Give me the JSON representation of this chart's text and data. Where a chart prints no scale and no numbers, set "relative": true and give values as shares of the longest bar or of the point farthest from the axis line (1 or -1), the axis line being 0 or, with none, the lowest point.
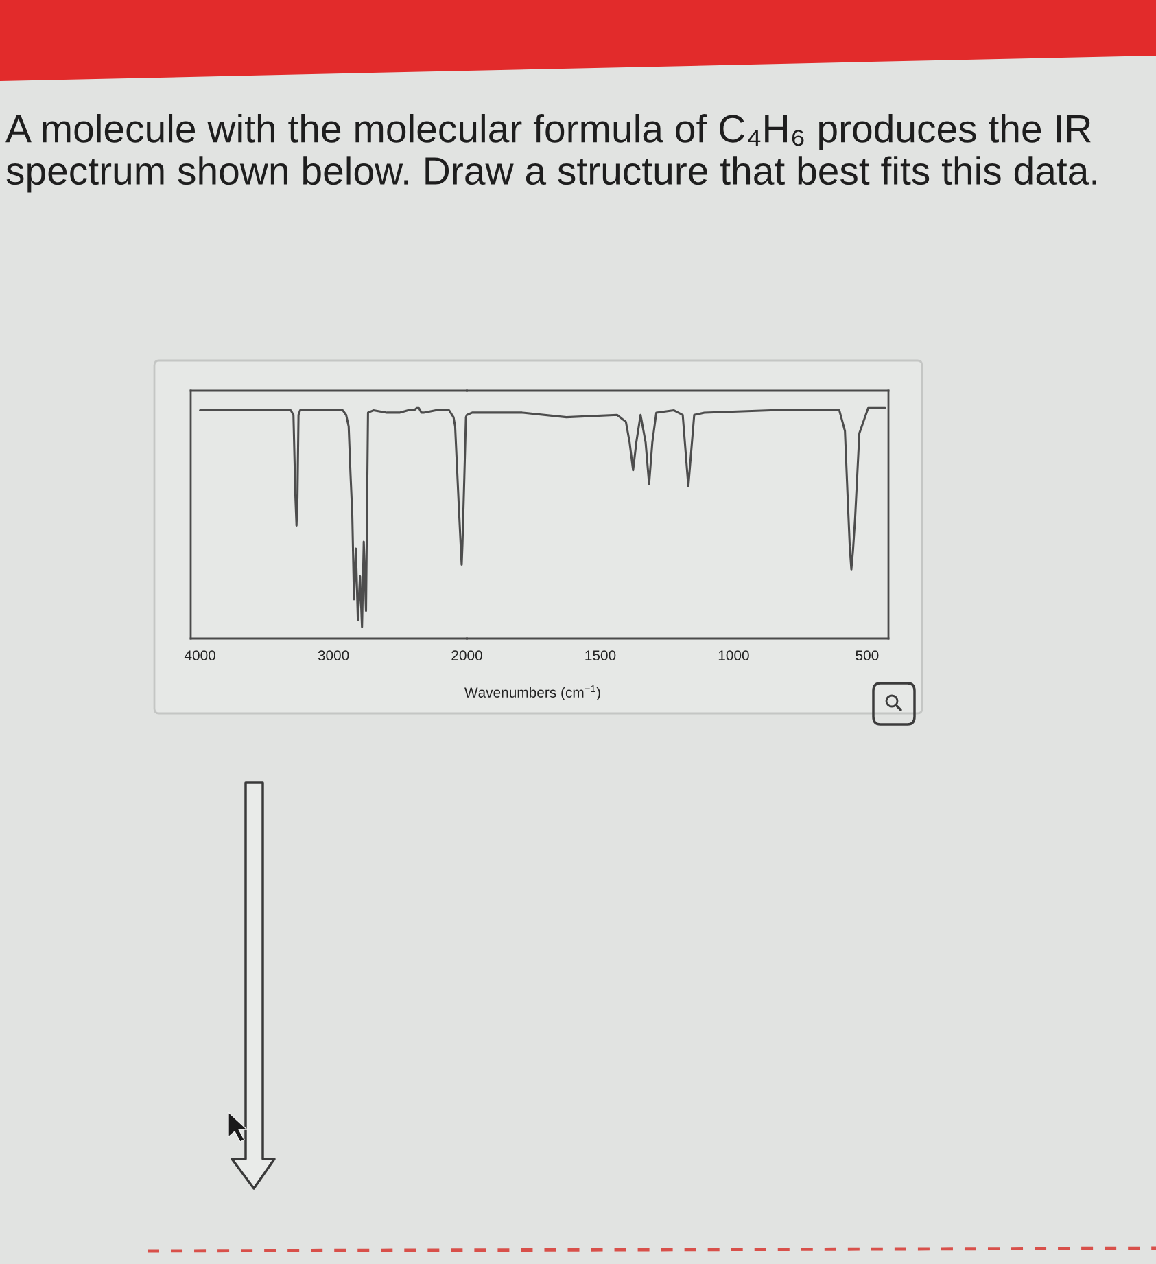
{
  "chart_data": [
    {
      "type": "line",
      "title": "A molecule with the molecular formula of C₄H₆ produces the IR spectrum shown below. Draw a structure that best fits this data.",
      "relative": true,
      "xlim": [
        4070,
        2000
      ],
      "xticks": [
        4000,
        3000,
        2000
      ],
      "x": [
        4000,
        3700,
        3320,
        3300,
        3285,
        3277,
        3270,
        3262,
        3250,
        2930,
        2905,
        2886,
        2872,
        2859,
        2846,
        2832,
        2817,
        2801,
        2786,
        2773,
        2756,
        2741,
        2700,
        2600,
        2505,
        2440,
        2396,
        2375,
        2360,
        2340,
        2324,
        2233,
        2133,
        2100,
        2088,
        2061,
        2045,
        2039,
        2033,
        2019,
        2007,
        2000
      ],
      "series": [
        {
          "color": "#4d4d4d",
          "values": [
            0.99,
            0.99,
            0.99,
            0.97,
            0.61,
            0.49,
            0.61,
            0.97,
            0.99,
            0.99,
            0.97,
            0.92,
            0.71,
            0.54,
            0.17,
            0.39,
            0.08,
            0.27,
            0.05,
            0.42,
            0.12,
            0.98,
            0.99,
            0.98,
            0.98,
            0.99,
            0.99,
            1.0,
            1.0,
            0.98,
            0.98,
            0.99,
            0.99,
            0.96,
            0.92,
            0.58,
            0.39,
            0.32,
            0.41,
            0.7,
            0.96,
            0.97
          ]
        }
      ]
    },
    {
      "type": "line",
      "xlabel": "Wavenumbers (cm$^{−1}$)",
      "relative": true,
      "xlim": [
        2000,
        420
      ],
      "xticks": [
        1500,
        1000,
        500
      ],
      "x": [
        2000,
        1980,
        1793,
        1627,
        1437,
        1404,
        1390,
        1377,
        1365,
        1349,
        1330,
        1317,
        1305,
        1290,
        1224,
        1191,
        1170,
        1148,
        1110,
        861,
        604,
        583,
        572,
        565,
        559,
        553,
        545,
        529,
        496,
        432
      ],
      "series": [
        {
          "color": "#4d4d4d",
          "values": [
            0.97,
            0.98,
            0.98,
            0.96,
            0.97,
            0.94,
            0.85,
            0.73,
            0.85,
            0.97,
            0.85,
            0.67,
            0.85,
            0.98,
            0.99,
            0.97,
            0.66,
            0.97,
            0.98,
            0.99,
            0.99,
            0.9,
            0.59,
            0.4,
            0.3,
            0.38,
            0.52,
            0.89,
            1.0,
            1.0
          ]
        }
      ]
    }
  ]
}
